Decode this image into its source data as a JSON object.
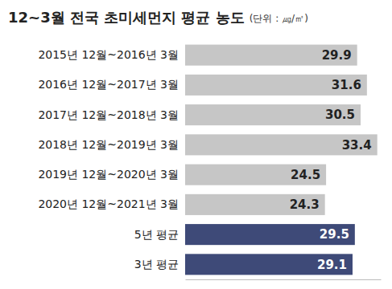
{
  "chart_data": {
    "type": "bar",
    "orientation": "horizontal",
    "title": "12~3월 전국 초미세먼지 평균 농도",
    "subtitle": "(단위 : ㎍/㎥)",
    "categories": [
      "2015년 12월~2016년 3월",
      "2016년 12월~2017년 3월",
      "2017년 12월~2018년 3월",
      "2018년 12월~2019년 3월",
      "2019년 12월~2020년 3월",
      "2020년 12월~2021년 3월",
      "5년 평균",
      "3년 평균"
    ],
    "values": [
      29.9,
      31.6,
      30.5,
      33.4,
      24.5,
      24.3,
      29.5,
      29.1
    ],
    "colors": [
      "#c6c6c6",
      "#c6c6c6",
      "#c6c6c6",
      "#c6c6c6",
      "#c6c6c6",
      "#c6c6c6",
      "#3e4a78",
      "#3e4a78"
    ],
    "xlim": [
      0,
      34
    ],
    "xticks": [],
    "data_labels": true,
    "tick_labels": "y",
    "grid": false
  }
}
